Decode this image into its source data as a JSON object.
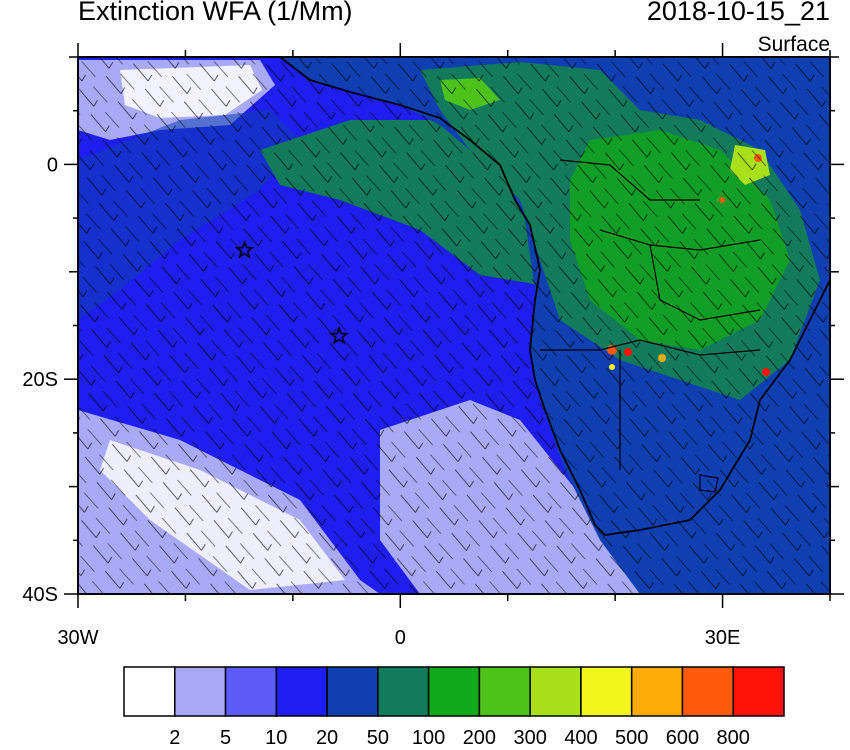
{
  "header": {
    "title": "Extinction WFA (1/Mm)",
    "datetime": "2018-10-15_21",
    "level": "Surface"
  },
  "map": {
    "lon_range": [
      -30,
      40
    ],
    "lat_range": [
      -40,
      10
    ],
    "x_tick_labels": [
      "30W",
      "0",
      "30E"
    ],
    "y_tick_labels": [
      "0",
      "20S",
      "40S"
    ],
    "station_markers": [
      {
        "name": "star-1",
        "lon": -14.5,
        "lat": -8.0
      },
      {
        "name": "star-2",
        "lon": -5.7,
        "lat": -16.0
      }
    ],
    "colors": {
      "ocean_base": "#1e1ef0",
      "land_base": "#0f3fb0",
      "plume": "#137a5c",
      "land_green": "#11a81a",
      "outline": "#000000"
    }
  },
  "colorbar": {
    "labels": [
      "2",
      "5",
      "10",
      "20",
      "50",
      "100",
      "200",
      "300",
      "400",
      "500",
      "600",
      "800"
    ],
    "colors": [
      "#ffffff",
      "#a9aaf6",
      "#5b5cf8",
      "#1e1ef0",
      "#0f3fb0",
      "#137a5c",
      "#11a81a",
      "#4cc21a",
      "#a8e01a",
      "#f3f61a",
      "#fdac05",
      "#ff5a0a",
      "#ff1208"
    ]
  }
}
